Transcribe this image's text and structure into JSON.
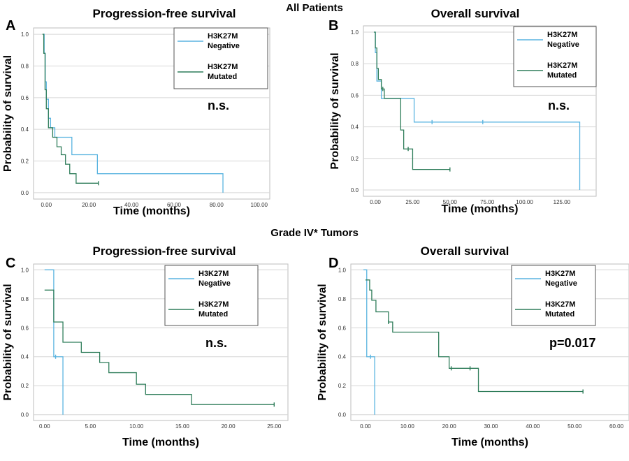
{
  "page": {
    "top_title": "All Patients",
    "middle_title": "Grade IV* Tumors"
  },
  "colors": {
    "negative": "#5ab4e0",
    "mutated": "#2f7d5a",
    "grid": "#d6d6d6",
    "frame": "#bdbdbd"
  },
  "chart_data": [
    {
      "id": "A",
      "type": "line",
      "letter": "A",
      "title": "Progression-free survival",
      "xlabel": "Time (months)",
      "ylabel": "Probability of survival",
      "xlim": [
        -6,
        105
      ],
      "ylim": [
        -0.04,
        1.04
      ],
      "xticks": [
        0,
        20,
        40,
        60,
        80,
        100
      ],
      "xtick_labels": [
        "0.00",
        "20.00",
        "40.00",
        "60.00",
        "80.00",
        "100.00"
      ],
      "yticks": [
        0,
        0.2,
        0.4,
        0.6,
        0.8,
        1.0
      ],
      "ytick_labels": [
        "0.0",
        "0.2",
        "0.4",
        "0.6",
        "0.8",
        "1.0"
      ],
      "annotation": "n.s.",
      "grid": true,
      "legend_position": "top-right",
      "series": [
        {
          "name": "H3K27M\nNegative",
          "color_key": "negative",
          "steps": [
            [
              -1.5,
              1.0
            ],
            [
              -1.0,
              0.88
            ],
            [
              -0.5,
              0.7
            ],
            [
              0,
              0.59
            ],
            [
              1,
              0.47
            ],
            [
              2,
              0.41
            ],
            [
              4,
              0.35
            ],
            [
              12,
              0.24
            ],
            [
              24,
              0.12
            ],
            [
              83,
              0.12
            ],
            [
              83,
              0.0
            ]
          ],
          "censors": []
        },
        {
          "name": "H3K27M\nMutated",
          "color_key": "mutated",
          "steps": [
            [
              -1.8,
              1.0
            ],
            [
              -1.2,
              0.88
            ],
            [
              -0.6,
              0.65
            ],
            [
              0,
              0.53
            ],
            [
              1,
              0.41
            ],
            [
              3,
              0.35
            ],
            [
              5,
              0.29
            ],
            [
              7,
              0.24
            ],
            [
              9,
              0.18
            ],
            [
              11,
              0.12
            ],
            [
              14,
              0.06
            ],
            [
              24.5,
              0.06
            ]
          ],
          "censors": [
            [
              24.5,
              0.06
            ]
          ]
        }
      ]
    },
    {
      "id": "B",
      "type": "line",
      "letter": "B",
      "title": "Overall survival",
      "xlabel": "Time (months)",
      "ylabel": "Probability of survival",
      "xlim": [
        -8,
        148
      ],
      "ylim": [
        -0.04,
        1.04
      ],
      "xticks": [
        0,
        25,
        50,
        75,
        100,
        125
      ],
      "xtick_labels": [
        "0.00",
        "25.00",
        "50.00",
        "75.00",
        "100.00",
        "125.00"
      ],
      "yticks": [
        0,
        0.2,
        0.4,
        0.6,
        0.8,
        1.0
      ],
      "ytick_labels": [
        "0.0",
        "0.2",
        "0.4",
        "0.6",
        "0.8",
        "1.0"
      ],
      "annotation": "n.s.",
      "grid": true,
      "legend_position": "top-right",
      "series": [
        {
          "name": "H3K27M\nNegative",
          "color_key": "negative",
          "steps": [
            [
              -1,
              1.0
            ],
            [
              0,
              0.87
            ],
            [
              1,
              0.69
            ],
            [
              4,
              0.58
            ],
            [
              25,
              0.58
            ],
            [
              26,
              0.43
            ],
            [
              137,
              0.43
            ],
            [
              137,
              0.0
            ]
          ],
          "censors": [
            [
              38,
              0.43
            ],
            [
              72,
              0.43
            ]
          ]
        },
        {
          "name": "H3K27M\nMutated",
          "color_key": "mutated",
          "steps": [
            [
              -1,
              1.0
            ],
            [
              0,
              0.9
            ],
            [
              1,
              0.77
            ],
            [
              2,
              0.7
            ],
            [
              4,
              0.64
            ],
            [
              6,
              0.58
            ],
            [
              17,
              0.38
            ],
            [
              19,
              0.26
            ],
            [
              25,
              0.13
            ],
            [
              50,
              0.13
            ]
          ],
          "censors": [
            [
              5,
              0.64
            ],
            [
              22,
              0.26
            ],
            [
              50,
              0.13
            ]
          ]
        }
      ]
    },
    {
      "id": "C",
      "type": "line",
      "letter": "C",
      "title": "Progression-free survival",
      "xlabel": "Time (months)",
      "ylabel": "Probability of survival",
      "xlim": [
        -1.2,
        26.5
      ],
      "ylim": [
        -0.04,
        1.04
      ],
      "xticks": [
        0,
        5,
        10,
        15,
        20,
        25
      ],
      "xtick_labels": [
        "0.00",
        "5.00",
        "10.00",
        "15.00",
        "20.00",
        "25.00"
      ],
      "yticks": [
        0,
        0.2,
        0.4,
        0.6,
        0.8,
        1.0
      ],
      "ytick_labels": [
        "0.0",
        "0.2",
        "0.4",
        "0.6",
        "0.8",
        "1.0"
      ],
      "annotation": "n.s.",
      "grid": true,
      "legend_position": "top-right",
      "series": [
        {
          "name": "H3K27M\nNegative",
          "color_key": "negative",
          "steps": [
            [
              0,
              1.0
            ],
            [
              1,
              0.4
            ],
            [
              2,
              0.4
            ],
            [
              2,
              0.0
            ]
          ],
          "censors": [
            [
              1.2,
              0.4
            ]
          ]
        },
        {
          "name": "H3K27M\nMutated",
          "color_key": "mutated",
          "steps": [
            [
              0,
              0.86
            ],
            [
              1,
              0.64
            ],
            [
              2,
              0.5
            ],
            [
              4,
              0.43
            ],
            [
              6,
              0.36
            ],
            [
              7,
              0.29
            ],
            [
              10,
              0.21
            ],
            [
              11,
              0.14
            ],
            [
              16,
              0.07
            ],
            [
              25,
              0.07
            ]
          ],
          "censors": [
            [
              25,
              0.07
            ]
          ]
        }
      ]
    },
    {
      "id": "D",
      "type": "line",
      "letter": "D",
      "title": "Overall survival",
      "xlabel": "Time (months)",
      "ylabel": "Probability of survival",
      "xlim": [
        -3.5,
        63
      ],
      "ylim": [
        -0.04,
        1.04
      ],
      "xticks": [
        0,
        10,
        20,
        30,
        40,
        50,
        60
      ],
      "xtick_labels": [
        "0.00",
        "10.00",
        "20.00",
        "30.00",
        "40.00",
        "50.00",
        "60.00"
      ],
      "yticks": [
        0,
        0.2,
        0.4,
        0.6,
        0.8,
        1.0
      ],
      "ytick_labels": [
        "0.0",
        "0.2",
        "0.4",
        "0.6",
        "0.8",
        "1.0"
      ],
      "annotation": "p=0.017",
      "grid": true,
      "legend_position": "top-right",
      "series": [
        {
          "name": "H3K27M\nNegative",
          "color_key": "negative",
          "steps": [
            [
              -0.5,
              1.0
            ],
            [
              0.3,
              0.4
            ],
            [
              2.2,
              0.4
            ],
            [
              2.2,
              0.0
            ]
          ],
          "censors": [
            [
              1.2,
              0.4
            ]
          ]
        },
        {
          "name": "H3K27M\nMutated",
          "color_key": "mutated",
          "steps": [
            [
              0,
              0.93
            ],
            [
              1,
              0.86
            ],
            [
              1.5,
              0.79
            ],
            [
              2.5,
              0.71
            ],
            [
              5.5,
              0.64
            ],
            [
              6.5,
              0.57
            ],
            [
              17.5,
              0.4
            ],
            [
              20,
              0.32
            ],
            [
              27,
              0.16
            ],
            [
              52,
              0.16
            ]
          ],
          "censors": [
            [
              5.5,
              0.64
            ],
            [
              20.5,
              0.32
            ],
            [
              25,
              0.32
            ],
            [
              52,
              0.16
            ]
          ]
        }
      ]
    }
  ]
}
